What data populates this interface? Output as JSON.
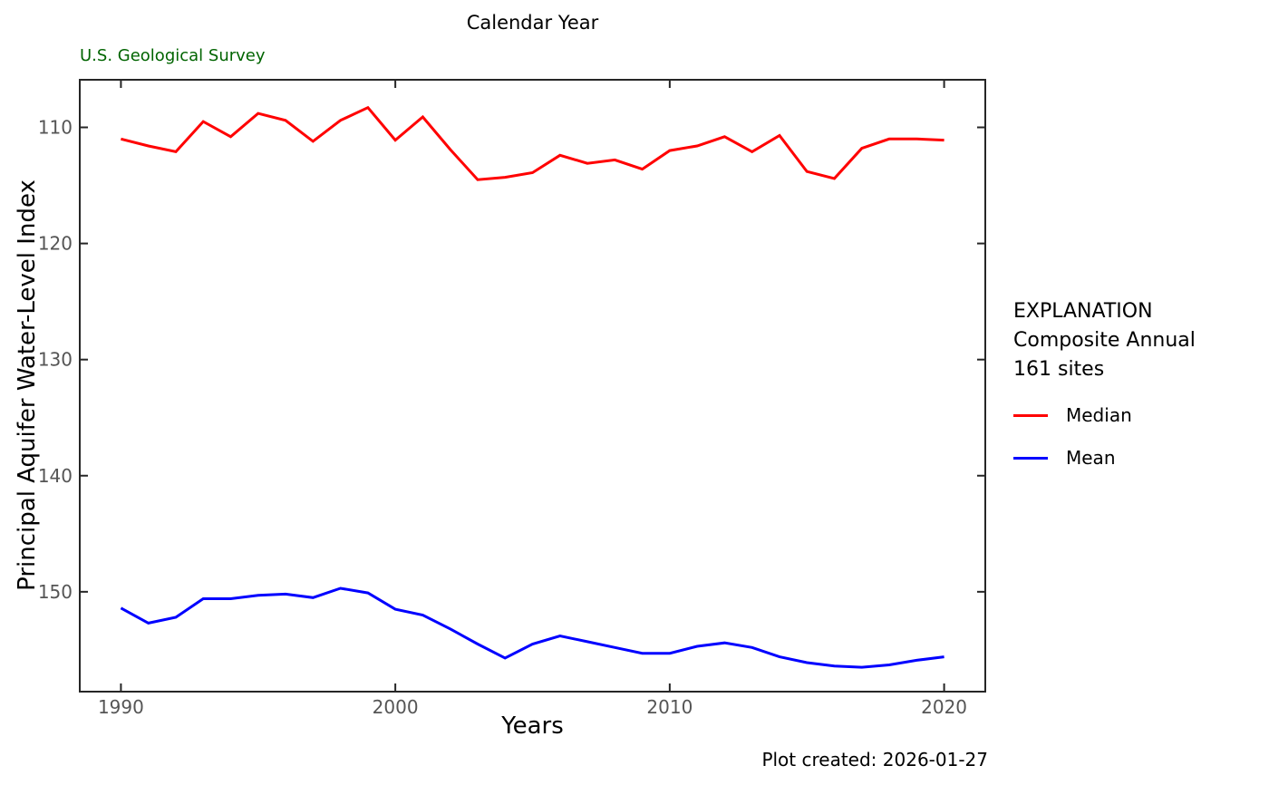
{
  "page": {
    "title": "Calendar Year",
    "agency": "U.S. Geological Survey",
    "footer": "Plot created: 2026-01-27"
  },
  "legend": {
    "heading_lines": [
      "EXPLANATION",
      "Composite Annual",
      "161 sites"
    ],
    "items": [
      {
        "label": "Median"
      },
      {
        "label": "Mean"
      }
    ]
  },
  "chart_data": {
    "type": "line",
    "title": "Calendar Year",
    "xlabel": "Years",
    "ylabel": "Principal Aquifer Water-Level Index",
    "x": [
      1990,
      1991,
      1992,
      1993,
      1994,
      1995,
      1996,
      1997,
      1998,
      1999,
      2000,
      2001,
      2002,
      2003,
      2004,
      2005,
      2006,
      2007,
      2008,
      2009,
      2010,
      2011,
      2012,
      2013,
      2014,
      2015,
      2016,
      2017,
      2018,
      2019,
      2020
    ],
    "series": [
      {
        "name": "Median",
        "color": "#ff0000",
        "values": [
          111.0,
          111.6,
          112.1,
          109.5,
          110.8,
          108.8,
          109.4,
          111.2,
          109.4,
          108.3,
          111.1,
          109.1,
          111.9,
          114.5,
          114.3,
          113.9,
          112.4,
          113.1,
          112.8,
          113.6,
          112.0,
          111.6,
          110.8,
          112.1,
          110.7,
          113.8,
          114.4,
          111.8,
          111.0,
          111.0,
          111.1
        ]
      },
      {
        "name": "Mean",
        "color": "#0000ff",
        "values": [
          151.4,
          152.7,
          152.2,
          150.6,
          150.6,
          150.3,
          150.2,
          150.5,
          149.7,
          150.1,
          151.5,
          152.0,
          153.2,
          154.5,
          155.7,
          154.5,
          153.8,
          154.3,
          154.8,
          155.3,
          155.3,
          154.7,
          154.4,
          154.8,
          155.6,
          156.1,
          156.4,
          156.5,
          156.3,
          155.9,
          155.6
        ]
      }
    ],
    "x_ticks": [
      1990,
      2000,
      2010,
      2020
    ],
    "y_ticks": [
      110,
      120,
      130,
      140,
      150
    ],
    "xlim": [
      1988.5,
      2021.5
    ],
    "ylim": [
      105.9,
      158.6
    ],
    "y_axis_reversed": true,
    "grid": false,
    "legend_position": "right of plot",
    "tick_style": "inward on all four spines",
    "axis_color": "#262626",
    "tick_label_color": "#555555"
  }
}
